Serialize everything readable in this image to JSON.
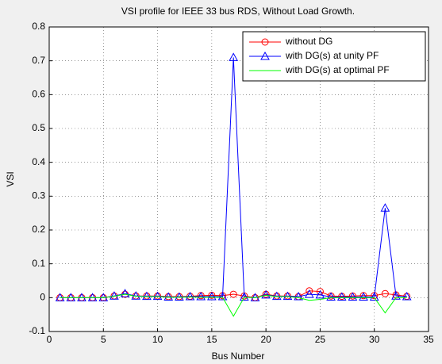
{
  "chart_data": {
    "type": "line",
    "title": "VSI profile for IEEE 33 bus RDS, Without Load Growth.",
    "x_label": "Bus Number",
    "y_label": "VSI",
    "x": [
      1,
      2,
      3,
      4,
      5,
      6,
      7,
      8,
      9,
      10,
      11,
      12,
      13,
      14,
      15,
      16,
      17,
      18,
      19,
      20,
      21,
      22,
      23,
      24,
      25,
      26,
      27,
      28,
      29,
      30,
      31,
      32,
      33
    ],
    "series": [
      {
        "name": "without DG",
        "color": "#ff0000",
        "marker": "o",
        "values": [
          0,
          0,
          0,
          0,
          0,
          0.005,
          0.01,
          0.005,
          0.005,
          0.005,
          0.003,
          0.003,
          0.004,
          0.006,
          0.007,
          0.006,
          0.01,
          0.005,
          0,
          0.01,
          0.005,
          0.005,
          0.003,
          0.02,
          0.018,
          0.005,
          0.004,
          0.005,
          0.006,
          0.006,
          0.012,
          0.008,
          0.004
        ]
      },
      {
        "name": "with DG(s) at unity PF",
        "color": "#0000ff",
        "marker": "^",
        "values": [
          0,
          0,
          0,
          0,
          0,
          0.005,
          0.012,
          0.005,
          0.004,
          0.004,
          0.002,
          0.002,
          0.003,
          0.003,
          0.003,
          0.003,
          0.71,
          0.002,
          0,
          0.008,
          0.004,
          0.004,
          0.003,
          0.01,
          0.008,
          0.002,
          0.002,
          0.002,
          0.002,
          0.002,
          0.265,
          0.005,
          0.003
        ]
      },
      {
        "name": "with DG(s) at optimal PF",
        "color": "#00ff00",
        "values": [
          0,
          0,
          0,
          0,
          0,
          0.004,
          0.01,
          0.004,
          0.003,
          0.003,
          0.001,
          0.001,
          0.002,
          0.001,
          0.001,
          0.001,
          -0.055,
          0.001,
          0,
          0.007,
          0.003,
          0.003,
          0,
          -0.008,
          -0.005,
          0,
          0,
          0,
          0,
          0,
          -0.045,
          0,
          0
        ]
      }
    ],
    "xlim": [
      0,
      35
    ],
    "xticks": [
      0,
      5,
      10,
      15,
      20,
      25,
      30,
      35
    ],
    "ylim": [
      -0.1,
      0.8
    ],
    "yticks": [
      -0.1,
      0,
      0.1,
      0.2,
      0.3,
      0.4,
      0.5,
      0.6,
      0.7,
      0.8
    ],
    "grid": true,
    "legend": "top-right"
  }
}
